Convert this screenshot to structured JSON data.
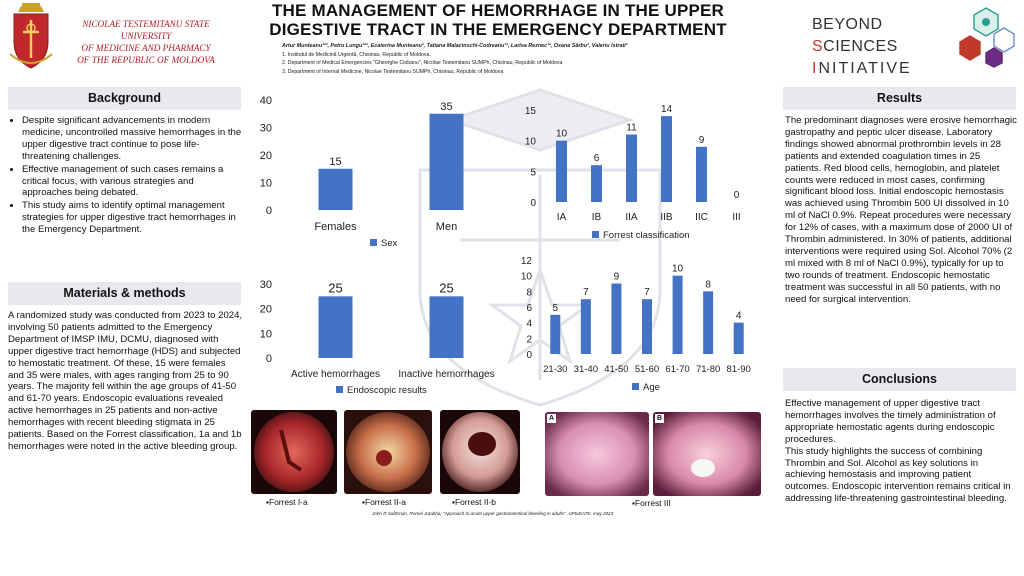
{
  "header": {
    "university": [
      "NICOLAE TESTEMITANU STATE UNIVERSITY",
      "OF MEDICINE AND PHARMACY",
      "OF THE REPUBLIC OF MOLDOVA"
    ],
    "title_lines": [
      "THE MANAGEMENT OF HEMORRHAGE IN THE UPPER",
      "DIGESTIVE TRACT IN THE EMERGENCY DEPARTMENT"
    ],
    "authors": "Artur Munteanu¹²³, Petru Lungu¹²², Ecaterina Munteanu², Tatiana Malacinschi-Codreanu¹², Larisa Reznec¹², Oxana Sârbu², Valeriu Istrati³",
    "affiliations": [
      "1. Institutul de Medicină Urgentă, Chisinau, Republic of Moldova.",
      "2. Department of Medical Emergencies \"Gheorghe Ciobanu\", Nicolae Testemitanu SUMPh, Chisinau, Republic of Moldova",
      "3. Department of Internal Medicine, Nicolae Testemitanu SUMPh, Chisinau, Republic of Moldova"
    ],
    "brand_line1_a": "BEYOND ",
    "brand_line1_b": "S",
    "brand_line1_c": "CIENCES",
    "brand_line2_a": "I",
    "brand_line2_b": "NITIATIVE",
    "accent": "#b1202a",
    "bar_color": "#4472c4"
  },
  "background": {
    "heading": "Background",
    "bullets": [
      "Despite significant advancements in modern medicine, uncontrolled massive hemorrhages in the upper digestive tract continue to pose life-threatening challenges.",
      "Effective management of such cases remains a critical focus, with various strategies and approaches being debated.",
      "This study aims to identify optimal management strategies for upper digestive tract hemorrhages in the Emergency Department."
    ]
  },
  "methods": {
    "heading": "Materials & methods",
    "text": "A randomized study was conducted from 2023 to 2024, involving 50 patients admitted to the Emergency Department of IMSP IMU, DCMU, diagnosed with upper digestive tract hemorrhage (HDS) and subjected to hemostatic treatment. Of these, 15 were females and 35 were males, with ages ranging from 25 to 90 years. The majority fell within the age groups of 41-50 and 61-70 years. Endoscopic evaluations revealed active hemorrhages in 25 patients and non-active hemorrhages with recent bleeding stigmata in 25 patients. Based on the Forrest classification, 1a and 1b hemorrhages were noted in the active bleeding group."
  },
  "results": {
    "heading": "Results",
    "text": "The predominant diagnoses were erosive hemorrhagic gastropathy and peptic ulcer disease. Laboratory findings showed abnormal prothrombin levels in 28 patients and extended coagulation times in 25 patients. Red blood cells, hemoglobin, and platelet counts were reduced in most cases, confirming significant blood loss. Initial endoscopic hemostasis was achieved using Thrombin 500 UI dissolved in 10 ml of NaCl 0.9%. Repeat procedures were necessary for 12% of cases, with a maximum dose of 2000 UI of Thrombin administered. In 30% of patients, additional interventions were required using Sol. Alcohol 70% (2 ml mixed with 8 ml of NaCl 0.9%), typically for up to two rounds of treatment. Endoscopic hemostatic treatment was successful in all 50 patients, with no need for surgical intervention."
  },
  "conclusions": {
    "heading": "Conclusions",
    "text1": "Effective management of upper digestive tract hemorrhages involves the timely administration of appropriate hemostatic agents during endoscopic procedures.",
    "text2": "This study highlights the success of combining Thrombin and Sol. Alcohol as key solutions in achieving hemostasis and improving patient outcomes. Endoscopic intervention remains critical in addressing life-threatening gastrointestinal bleeding."
  },
  "chart_data": [
    {
      "type": "bar",
      "categories": [
        "Females",
        "Men"
      ],
      "values": [
        15,
        35
      ],
      "series_name": "Sex",
      "ylim": [
        0,
        40
      ],
      "yticks": [
        0,
        10,
        20,
        30,
        40
      ],
      "legend": "bottom"
    },
    {
      "type": "bar",
      "categories": [
        "IA",
        "IB",
        "IIA",
        "IIB",
        "IIC",
        "III"
      ],
      "values": [
        10,
        6,
        11,
        14,
        9,
        0
      ],
      "series_name": "Forrest classification",
      "ylim": [
        0,
        15
      ],
      "yticks": [
        0,
        5,
        10,
        15
      ],
      "legend": "bottom"
    },
    {
      "type": "bar",
      "categories": [
        "Active hemorrhages",
        "Inactive hemorrhages"
      ],
      "values": [
        25,
        25
      ],
      "series_name": "Endoscopic results",
      "ylim": [
        0,
        30
      ],
      "yticks": [
        0,
        10,
        20,
        30
      ],
      "legend": "bottom"
    },
    {
      "type": "bar",
      "categories": [
        "21-30",
        "31-40",
        "41-50",
        "51-60",
        "61-70",
        "71-80",
        "81-90"
      ],
      "values": [
        5,
        7,
        9,
        7,
        10,
        8,
        4
      ],
      "series_name": "Age",
      "ylim": [
        0,
        12
      ],
      "yticks": [
        0,
        2,
        4,
        6,
        8,
        10,
        12
      ],
      "legend": "bottom"
    }
  ],
  "images": {
    "captions": [
      "Forrest I-a",
      "Forrest II-a",
      "Forrest II-b",
      "Forrest III"
    ],
    "panel_labels": [
      "A",
      "B"
    ],
    "reference": "John R Saltzman, Romel Jutabha, \"Approach to acute upper gastrointestinal bleeding in adults\", UPtoDATE, may 2023"
  }
}
